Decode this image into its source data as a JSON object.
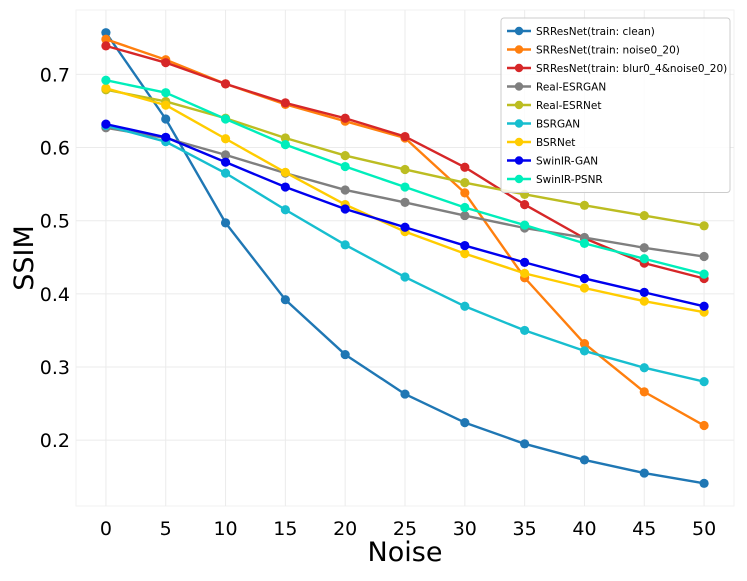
{
  "chart_data": {
    "type": "line",
    "xlabel": "Noise",
    "ylabel": "SSIM",
    "x": [
      0,
      5,
      10,
      15,
      20,
      25,
      30,
      35,
      40,
      45,
      50
    ],
    "xticks": [
      "0",
      "5",
      "10",
      "15",
      "20",
      "25",
      "30",
      "35",
      "40",
      "45",
      "50"
    ],
    "yticks": [
      "0.2",
      "0.3",
      "0.4",
      "0.5",
      "0.6",
      "0.7"
    ],
    "xlim": [
      -2.5,
      52.5
    ],
    "ylim": [
      0.11,
      0.788
    ],
    "grid": true,
    "legend_position": "top-right",
    "series": [
      {
        "name": "SRResNet(train: clean)",
        "color": "#1f77b4",
        "values": [
          0.757,
          0.639,
          0.497,
          0.392,
          0.317,
          0.263,
          0.224,
          0.195,
          0.173,
          0.155,
          0.141
        ]
      },
      {
        "name": "SRResNet(train: noise0_20)",
        "color": "#ff7f0e",
        "values": [
          0.748,
          0.72,
          0.687,
          0.659,
          0.636,
          0.613,
          0.538,
          0.422,
          0.332,
          0.266,
          0.22
        ]
      },
      {
        "name": "SRResNet(train: blur0_4&noise0_20)",
        "color": "#d62728",
        "values": [
          0.739,
          0.716,
          0.687,
          0.661,
          0.64,
          0.615,
          0.573,
          0.522,
          0.476,
          0.442,
          0.421
        ]
      },
      {
        "name": "Real-ESRGAN",
        "color": "#7f7f7f",
        "values": [
          0.627,
          0.613,
          0.59,
          0.565,
          0.542,
          0.525,
          0.507,
          0.49,
          0.477,
          0.463,
          0.451
        ]
      },
      {
        "name": "Real-ESRNet",
        "color": "#bcbd22",
        "values": [
          0.679,
          0.663,
          0.64,
          0.613,
          0.589,
          0.57,
          0.552,
          0.536,
          0.521,
          0.507,
          0.493
        ]
      },
      {
        "name": "BSRGAN",
        "color": "#17becf",
        "values": [
          0.63,
          0.608,
          0.565,
          0.515,
          0.467,
          0.423,
          0.383,
          0.35,
          0.322,
          0.299,
          0.28
        ]
      },
      {
        "name": "BSRNet",
        "color": "#ffcc00",
        "values": [
          0.681,
          0.658,
          0.612,
          0.566,
          0.522,
          0.485,
          0.455,
          0.428,
          0.408,
          0.39,
          0.375
        ]
      },
      {
        "name": "SwinIR-GAN",
        "color": "#0000ee",
        "values": [
          0.632,
          0.614,
          0.58,
          0.546,
          0.516,
          0.491,
          0.466,
          0.443,
          0.421,
          0.402,
          0.383
        ]
      },
      {
        "name": "SwinIR-PSNR",
        "color": "#00eebb",
        "values": [
          0.692,
          0.675,
          0.639,
          0.604,
          0.574,
          0.546,
          0.518,
          0.494,
          0.469,
          0.448,
          0.427
        ]
      }
    ]
  }
}
